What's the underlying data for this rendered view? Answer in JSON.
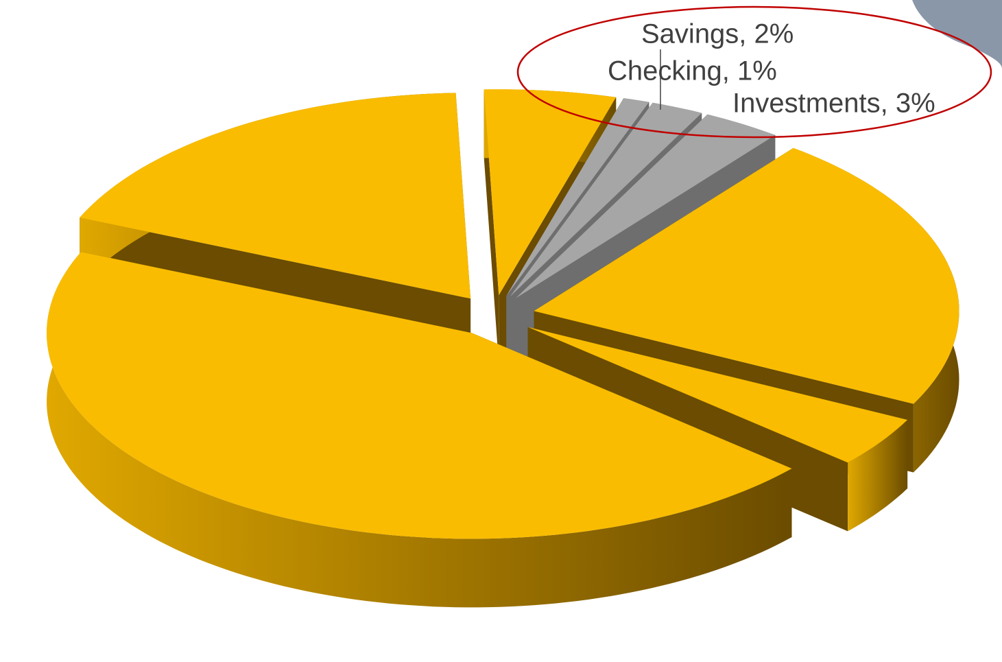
{
  "chart_data": {
    "type": "pie3d",
    "categories": [
      null,
      "Checking",
      "Savings",
      "Investments",
      null,
      null,
      null,
      null
    ],
    "values": [
      5,
      1,
      2,
      3,
      22,
      4,
      45,
      18
    ],
    "value_labels": [
      null,
      "Checking, 1%",
      "Savings, 2%",
      "Investments, 3%",
      null,
      null,
      null,
      null
    ],
    "colors": [
      "#f9bc00",
      "#a6a6a6",
      "#a6a6a6",
      "#a6a6a6",
      "#f9bc00",
      "#f9bc00",
      "#f9bc00",
      "#f9bc00"
    ],
    "side_colors": [
      "#6b4c00",
      "#6e6e6e",
      "#6e6e6e",
      "#6e6e6e",
      "#6b4c00",
      "#6b4c00",
      "#6b4c00",
      "#6b4c00"
    ]
  }
}
